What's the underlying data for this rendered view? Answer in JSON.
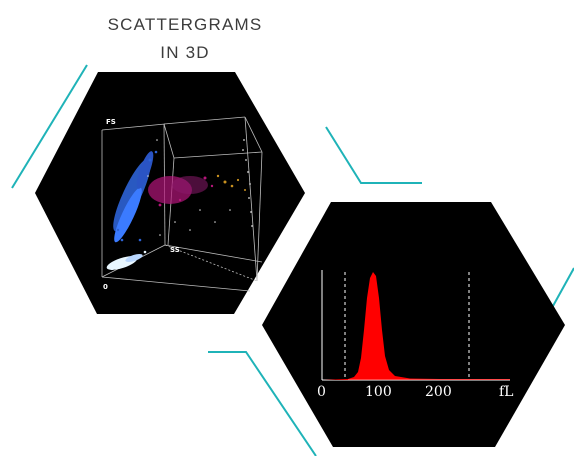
{
  "heading": {
    "line1": "SCATTERGRAMS",
    "line2": "IN 3D"
  },
  "colors": {
    "accent_line": "#1fb3b8",
    "hexagon": "#000000",
    "heading_text": "#3c3c3c",
    "histogram_fill": "#ff0000",
    "scatter_blue": "#2d63d6",
    "scatter_magenta": "#b4167a"
  },
  "scattergram": {
    "axis_fs": "FS",
    "axis_ss": "SS",
    "axis_fl": "FL",
    "origin": "0"
  },
  "histogram": {
    "ticks": [
      "0",
      "100",
      "200",
      "fL"
    ]
  }
}
